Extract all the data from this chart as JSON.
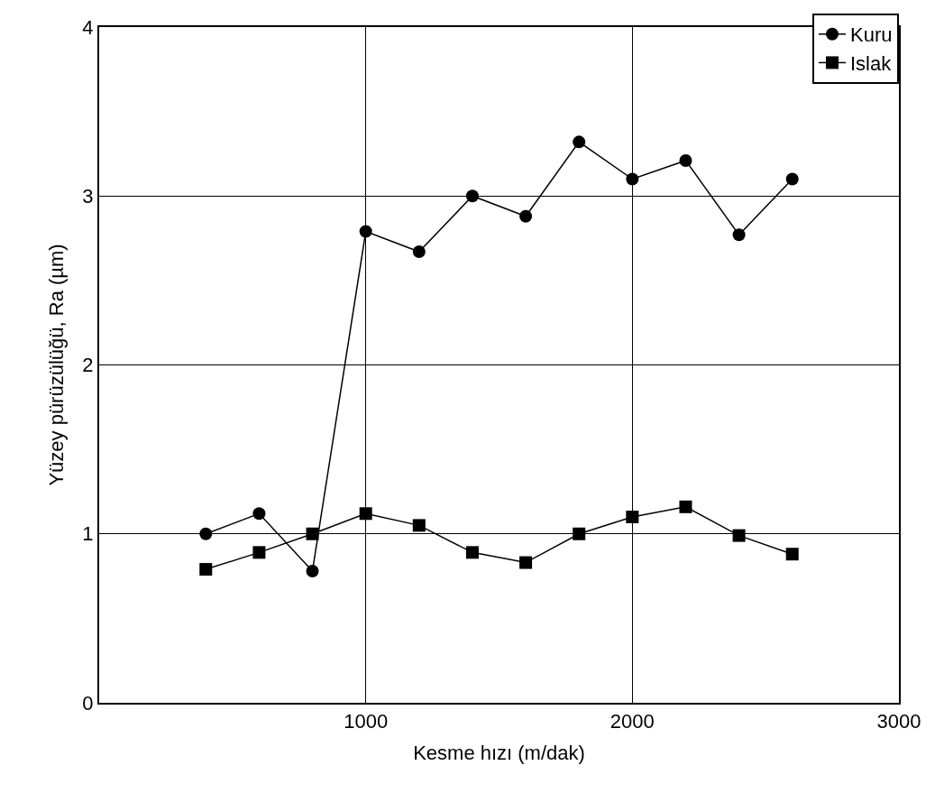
{
  "chart_data": {
    "type": "line",
    "xlabel": "Kesme hızı (m/dak)",
    "ylabel": "Yüzey pürüzülüğü, Ra (µm)",
    "x": [
      400,
      600,
      800,
      1000,
      1200,
      1400,
      1600,
      1800,
      2000,
      2200,
      2400,
      2600
    ],
    "series": [
      {
        "name": "Kuru",
        "color": "#000000",
        "marker": "circle",
        "values": [
          1.0,
          1.12,
          0.78,
          2.79,
          2.67,
          3.0,
          2.88,
          3.32,
          3.1,
          3.21,
          2.77,
          3.1
        ]
      },
      {
        "name": "Islak",
        "color": "#000000",
        "marker": "square",
        "values": [
          0.79,
          0.89,
          1.0,
          1.12,
          1.05,
          0.89,
          0.83,
          1.0,
          1.1,
          1.16,
          0.99,
          0.88
        ]
      }
    ],
    "xlim": [
      0,
      3000
    ],
    "xticks": [
      1000,
      2000,
      3000
    ],
    "ylim": [
      0,
      4
    ],
    "yticks": [
      0,
      1,
      2,
      3,
      4
    ],
    "grid": true,
    "legend": "top right",
    "line_style": "solid"
  }
}
